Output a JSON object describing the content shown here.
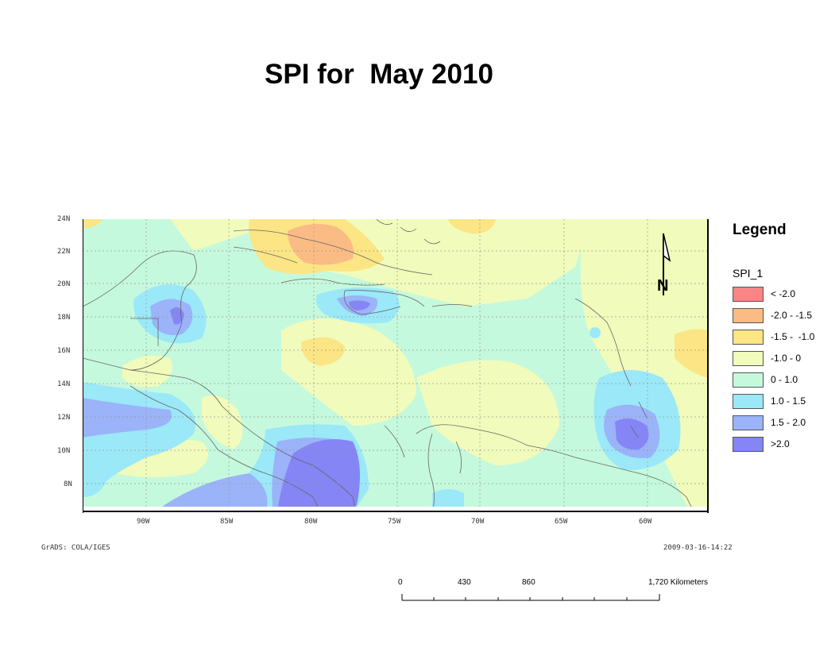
{
  "title": "SPI for  May 2010",
  "map": {
    "lat_labels": [
      "24N",
      "22N",
      "20N",
      "18N",
      "16N",
      "14N",
      "12N",
      "10N",
      "8N"
    ],
    "lon_labels": [
      "90W",
      "85W",
      "80W",
      "75W",
      "70W",
      "65W",
      "60W"
    ]
  },
  "legend": {
    "title": "Legend",
    "layer": "SPI_1",
    "items": [
      {
        "label": "< -2.0",
        "color": "#f98585"
      },
      {
        "label": "-2.0 - -1.5",
        "color": "#fbbb85"
      },
      {
        "label": "-1.5 -  -1.0",
        "color": "#fbe585"
      },
      {
        "label": "-1.0 - 0",
        "color": "#f1fbbb"
      },
      {
        "label": "0 - 1.0",
        "color": "#c5f9dd"
      },
      {
        "label": "1.0 - 1.5",
        "color": "#9be8f8"
      },
      {
        "label": "1.5 - 2.0",
        "color": "#9bb3f8"
      },
      {
        "label": ">2.0",
        "color": "#8585f5"
      }
    ]
  },
  "north_arrow": {
    "label": "N"
  },
  "footer": {
    "credit": "GrADS: COLA/IGES",
    "timestamp": "2009-03-16-14:22"
  },
  "scale_bar": {
    "labels": [
      "0",
      "430",
      "860",
      "1,720 Kilometers"
    ]
  }
}
